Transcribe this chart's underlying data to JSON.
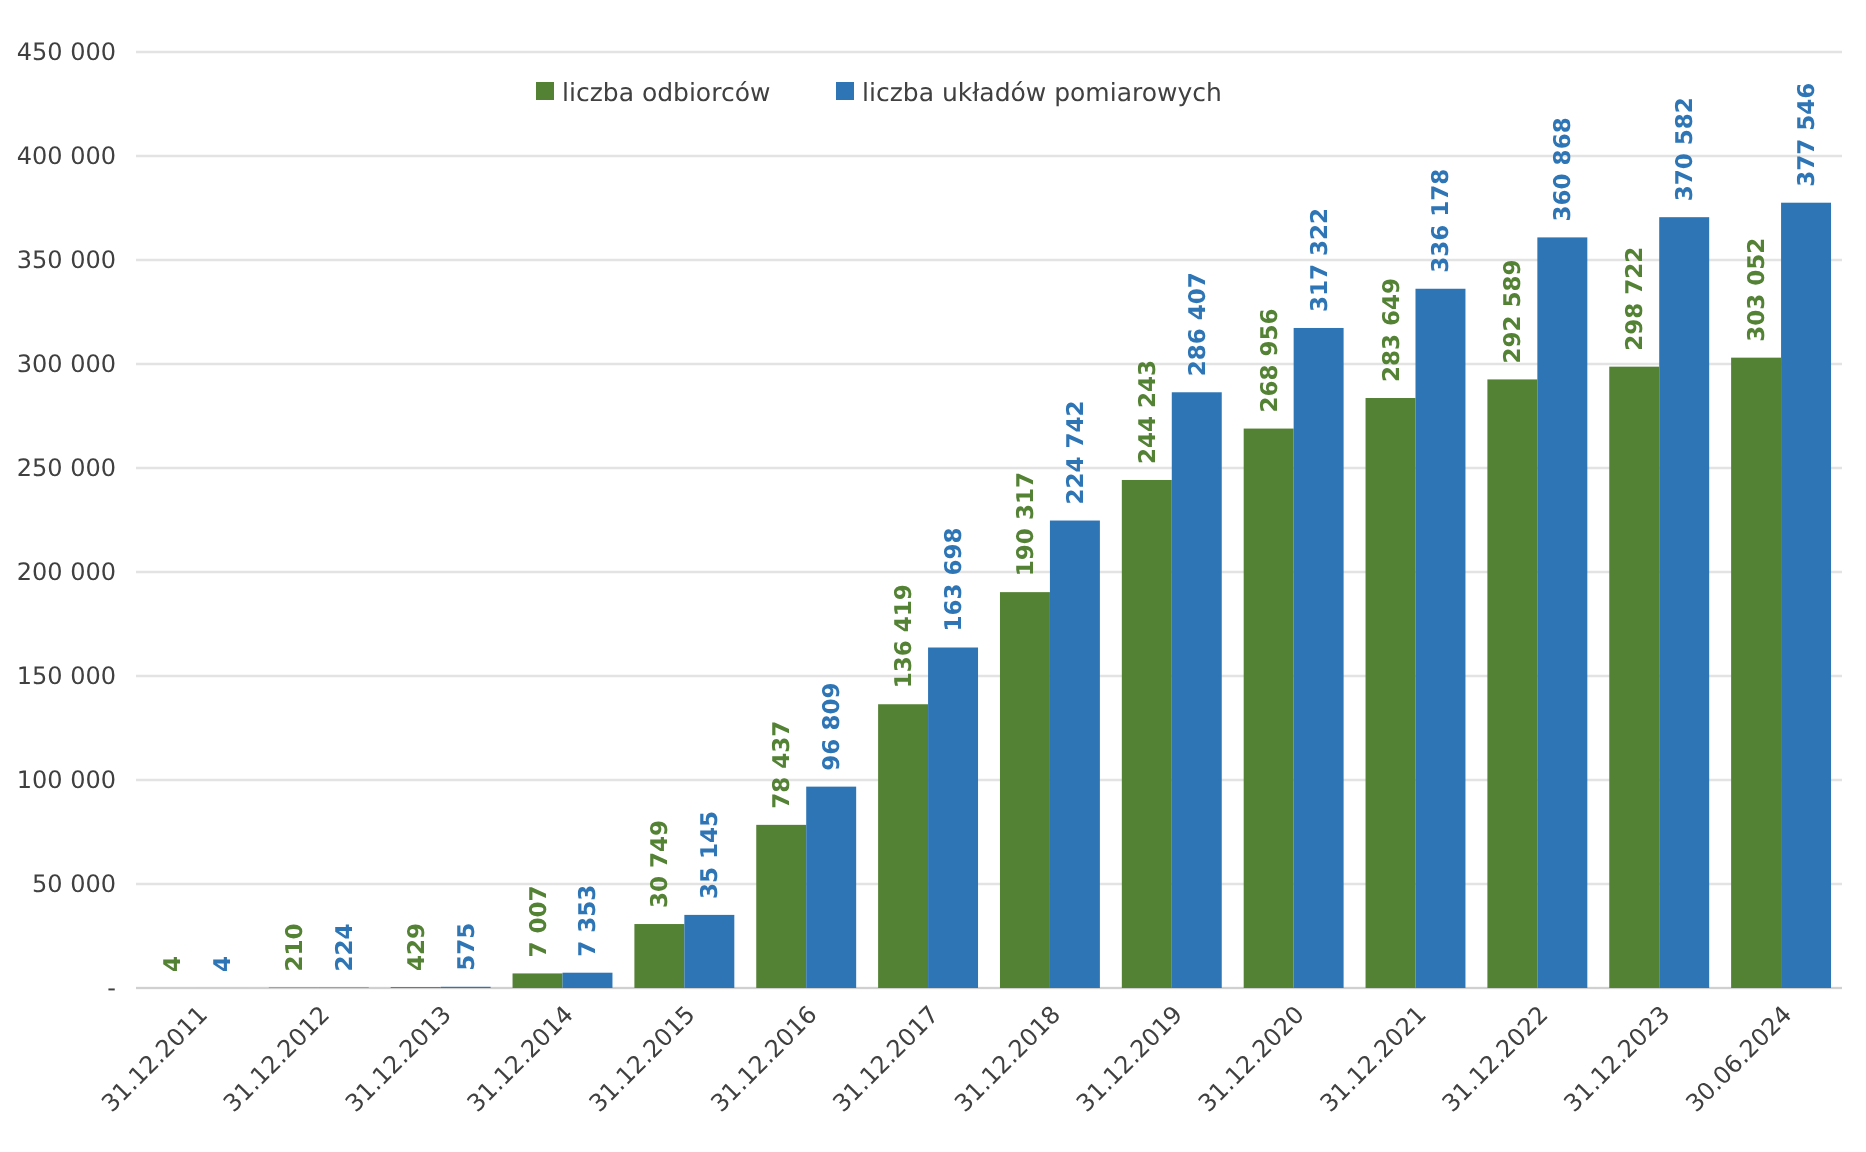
{
  "chart_data": {
    "type": "bar",
    "categories": [
      "31.12.2011",
      "31.12.2012",
      "31.12.2013",
      "31.12.2014",
      "31.12.2015",
      "31.12.2016",
      "31.12.2017",
      "31.12.2018",
      "31.12.2019",
      "31.12.2020",
      "31.12.2021",
      "31.12.2022",
      "31.12.2023",
      "30.06.2024"
    ],
    "series": [
      {
        "name": "liczba odbiorców",
        "color": "#548235",
        "values": [
          4,
          210,
          429,
          7007,
          30749,
          78437,
          136419,
          190317,
          244243,
          268956,
          283649,
          292589,
          298722,
          303052
        ]
      },
      {
        "name": "liczba układów pomiarowych",
        "color": "#2e75b6",
        "values": [
          4,
          224,
          575,
          7353,
          35145,
          96809,
          163698,
          224742,
          286407,
          317322,
          336178,
          360868,
          370582,
          377546
        ]
      }
    ],
    "ylim": [
      0,
      450000
    ],
    "yticks": [
      {
        "value": 0,
        "label": "-"
      },
      {
        "value": 50000,
        "label": "50 000"
      },
      {
        "value": 100000,
        "label": "100 000"
      },
      {
        "value": 150000,
        "label": "150 000"
      },
      {
        "value": 200000,
        "label": "200 000"
      },
      {
        "value": 250000,
        "label": "250 000"
      },
      {
        "value": 300000,
        "label": "300 000"
      },
      {
        "value": 350000,
        "label": "350 000"
      },
      {
        "value": 400000,
        "label": "400 000"
      },
      {
        "value": 450000,
        "label": "450 000"
      }
    ],
    "grid": "y",
    "legend": "top",
    "data_labels": true
  }
}
